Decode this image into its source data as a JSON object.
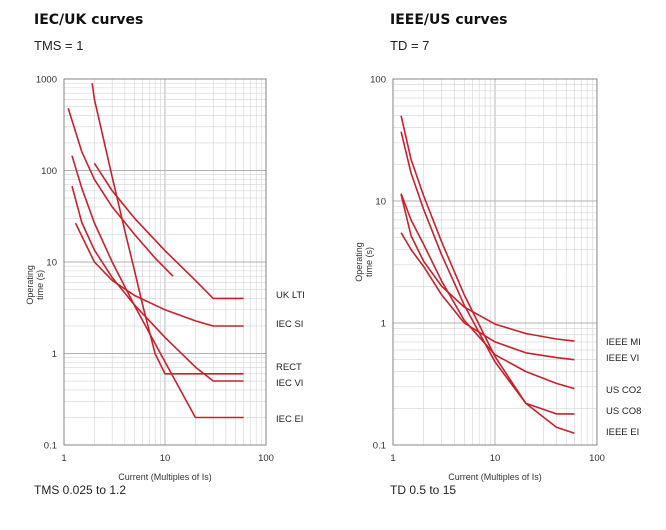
{
  "chart_data": [
    {
      "type": "line",
      "title": "IEC/UK curves",
      "subtitle": "TMS = 1",
      "footer": "TMS 0.025 to 1.2",
      "xlabel": "Current (Multiples of Is)",
      "ylabel": "Operating time (s)",
      "x_scale": "log",
      "y_scale": "log",
      "xlim": [
        1,
        100
      ],
      "ylim": [
        0.1,
        1000
      ],
      "x_ticks": [
        "1",
        "10",
        "100"
      ],
      "y_ticks": [
        "0.1",
        "1",
        "10",
        "100",
        "1000"
      ],
      "grid": true,
      "line_color": "#c8202c",
      "series": [
        {
          "name": "UK LTI",
          "x": [
            2,
            3,
            5,
            10,
            20,
            30,
            60
          ],
          "y": [
            120,
            60,
            30,
            13.3,
            6.3,
            4,
            4
          ]
        },
        {
          "name": "IEC SI",
          "x": [
            1.3,
            2,
            3,
            5,
            10,
            20,
            30,
            60
          ],
          "y": [
            26.6,
            10,
            6.3,
            4.3,
            3,
            2.27,
            2,
            2
          ]
        },
        {
          "name": "RECT",
          "x": [
            1.9,
            2,
            3,
            4,
            5,
            6,
            8,
            10,
            60
          ],
          "y": [
            900,
            600,
            85,
            22,
            8,
            3.4,
            0.99,
            0.6,
            0.6
          ]
        },
        {
          "name": "IEC VI",
          "x": [
            1.2,
            1.5,
            2,
            3,
            5,
            10,
            20,
            30,
            60
          ],
          "y": [
            67.5,
            27,
            13.5,
            6.75,
            3.38,
            1.5,
            0.71,
            0.5,
            0.5
          ]
        },
        {
          "name": "IEC EI",
          "x": [
            1.2,
            1.5,
            2,
            3,
            5,
            10,
            20,
            60
          ],
          "y": [
            145,
            64,
            26.7,
            10,
            3.33,
            0.81,
            0.2,
            0.2
          ]
        }
      ],
      "extra_curves": [
        {
          "x": [
            1.1,
            1.5,
            2,
            3,
            5,
            8,
            12
          ],
          "y": [
            480,
            160,
            80,
            40,
            20,
            11,
            7
          ]
        }
      ]
    },
    {
      "type": "line",
      "title": "IEEE/US curves",
      "subtitle": "TD = 7",
      "footer": "TD 0.5 to 15",
      "xlabel": "Current (Multiples of Is)",
      "ylabel": "Operating time (s)",
      "x_scale": "log",
      "y_scale": "log",
      "xlim": [
        1,
        100
      ],
      "ylim": [
        0.1,
        100
      ],
      "x_ticks": [
        "1",
        "10",
        "100"
      ],
      "y_ticks": [
        "0.1",
        "1",
        "10",
        "100"
      ],
      "grid": true,
      "line_color": "#c8202c",
      "series": [
        {
          "name": "IEEE MI",
          "x": [
            1.2,
            1.5,
            2,
            3,
            5,
            10,
            20,
            40,
            60
          ],
          "y": [
            11.3,
            5.2,
            3.2,
            2,
            1.35,
            0.98,
            0.82,
            0.74,
            0.71
          ]
        },
        {
          "name": "IEEE VI",
          "x": [
            1.2,
            1.5,
            2,
            3,
            5,
            10,
            20,
            40,
            60
          ],
          "y": [
            5.5,
            4,
            2.9,
            1.7,
            1,
            0.7,
            0.57,
            0.52,
            0.5
          ]
        },
        {
          "name": "US CO2",
          "x": [
            1.2,
            1.5,
            2,
            3,
            5,
            10,
            20,
            40,
            60
          ],
          "y": [
            11.5,
            7,
            4.4,
            2.2,
            1.05,
            0.55,
            0.4,
            0.32,
            0.29
          ]
        },
        {
          "name": "US CO8",
          "x": [
            1.2,
            1.5,
            2,
            3,
            5,
            10,
            20,
            40,
            60
          ],
          "y": [
            37,
            17,
            8.5,
            3.6,
            1.4,
            0.48,
            0.22,
            0.18,
            0.18
          ]
        },
        {
          "name": "IEEE EI",
          "x": [
            1.2,
            1.5,
            2,
            3,
            5,
            10,
            20,
            40,
            60
          ],
          "y": [
            50,
            22,
            11,
            4.6,
            1.7,
            0.53,
            0.22,
            0.14,
            0.125
          ]
        }
      ]
    }
  ]
}
